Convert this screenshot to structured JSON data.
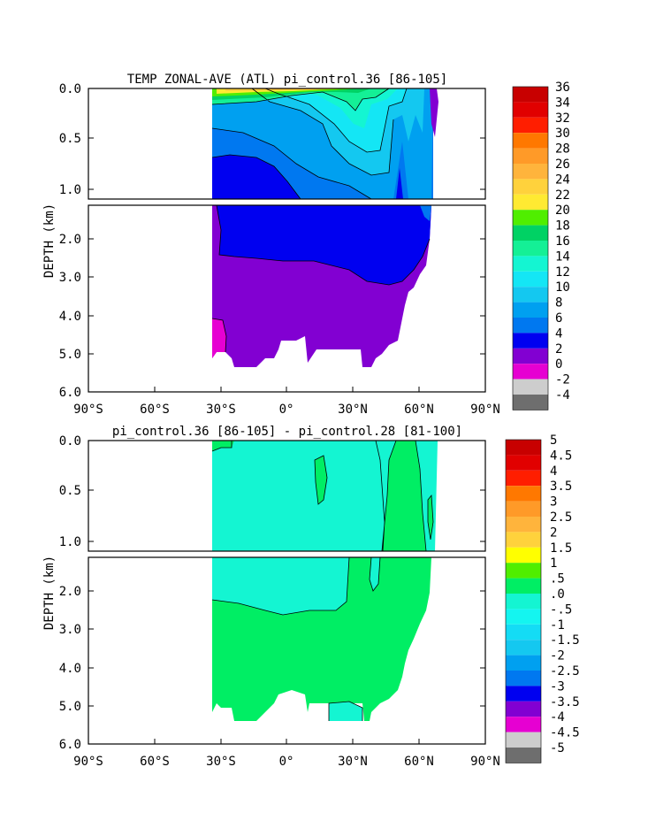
{
  "chart_data": [
    {
      "type": "heatmap",
      "title": "TEMP ZONAL-AVE (ATL) pi_control.36 [86-105]",
      "ylabel": "DEPTH (km)",
      "x_ticks": [
        "90°S",
        "60°S",
        "30°S",
        "0°",
        "30°N",
        "60°N",
        "90°N"
      ],
      "y_ticks_upper": [
        "0.0",
        "0.5",
        "1.0"
      ],
      "y_ticks_lower": [
        "2.0",
        "3.0",
        "4.0",
        "5.0",
        "6.0"
      ],
      "x_range_deg": [
        -90,
        90
      ],
      "y_range_km": [
        0,
        6
      ],
      "upper_panel_range_km": [
        0,
        1.1
      ],
      "colorbar_labels": [
        "36",
        "34",
        "32",
        "30",
        "28",
        "26",
        "24",
        "22",
        "20",
        "18",
        "16",
        "14",
        "12",
        "10",
        "8",
        "6",
        "4",
        "2",
        "0",
        "-2",
        "-4"
      ],
      "colorbar_colors": [
        "#c80000",
        "#e10000",
        "#ff1e00",
        "#ff7800",
        "#ff9a28",
        "#ffb43c",
        "#ffd23c",
        "#ffea32",
        "#50ee00",
        "#00d264",
        "#14f096",
        "#14f5d2",
        "#14e6f5",
        "#14c8f0",
        "#00a0f0",
        "#0078f0",
        "#0000f0",
        "#8200d2",
        "#e600d2",
        "#cdcdcd",
        "#6e6e6e"
      ],
      "regions": [
        {
          "label": "2-4",
          "color": "#8200d2"
        },
        {
          "label": "4-6",
          "color": "#0000f0"
        },
        {
          "label": "6-8",
          "color": "#0078f0"
        },
        {
          "label": "8-10",
          "color": "#00a0f0"
        },
        {
          "label": "10-12",
          "color": "#14c8f0"
        },
        {
          "label": "12-14",
          "color": "#14e6f5"
        },
        {
          "label": "14-16",
          "color": "#14f5d2"
        },
        {
          "label": "16-18",
          "color": "#14f096"
        },
        {
          "label": "18-20",
          "color": "#00d264"
        },
        {
          "label": "20-22",
          "color": "#50ee00"
        },
        {
          "label": "22-24",
          "color": "#ffea32"
        },
        {
          "label": "24-26",
          "color": "#ffd23c"
        },
        {
          "label": "26-28",
          "color": "#ffb43c"
        },
        {
          "label": "0-2",
          "color": "#e600d2"
        }
      ]
    },
    {
      "type": "heatmap",
      "title": "pi_control.36 [86-105] - pi_control.28 [81-100]",
      "ylabel": "DEPTH (km)",
      "x_ticks": [
        "90°S",
        "60°S",
        "30°S",
        "0°",
        "30°N",
        "60°N",
        "90°N"
      ],
      "y_ticks_upper": [
        "0.0",
        "0.5",
        "1.0"
      ],
      "y_ticks_lower": [
        "2.0",
        "3.0",
        "4.0",
        "5.0",
        "6.0"
      ],
      "x_range_deg": [
        -90,
        90
      ],
      "y_range_km": [
        0,
        6
      ],
      "upper_panel_range_km": [
        0,
        1.1
      ],
      "colorbar_labels": [
        "5",
        "4.5",
        "4",
        "3.5",
        "3",
        "2.5",
        "2",
        "1.5",
        "1",
        ".5",
        ".0",
        "-.5",
        "-1",
        "-1.5",
        "-2",
        "-2.5",
        "-3",
        "-3.5",
        "-4",
        "-4.5",
        "-5"
      ],
      "colorbar_colors": [
        "#c80000",
        "#e10000",
        "#ff1e00",
        "#ff7800",
        "#ff9a28",
        "#ffb43c",
        "#ffd23c",
        "#ffff00",
        "#50ee00",
        "#00ee64",
        "#14f5d2",
        "#14f5f0",
        "#14dcf5",
        "#14c8f0",
        "#00a0f0",
        "#0078f0",
        "#0000f0",
        "#8200d2",
        "#e600d2",
        "#cdcdcd",
        "#6e6e6e"
      ],
      "regions": [
        {
          "label": "-.5-.0",
          "color": "#14f5d2"
        },
        {
          "label": ".0-.5",
          "color": "#00ee64"
        }
      ]
    }
  ]
}
